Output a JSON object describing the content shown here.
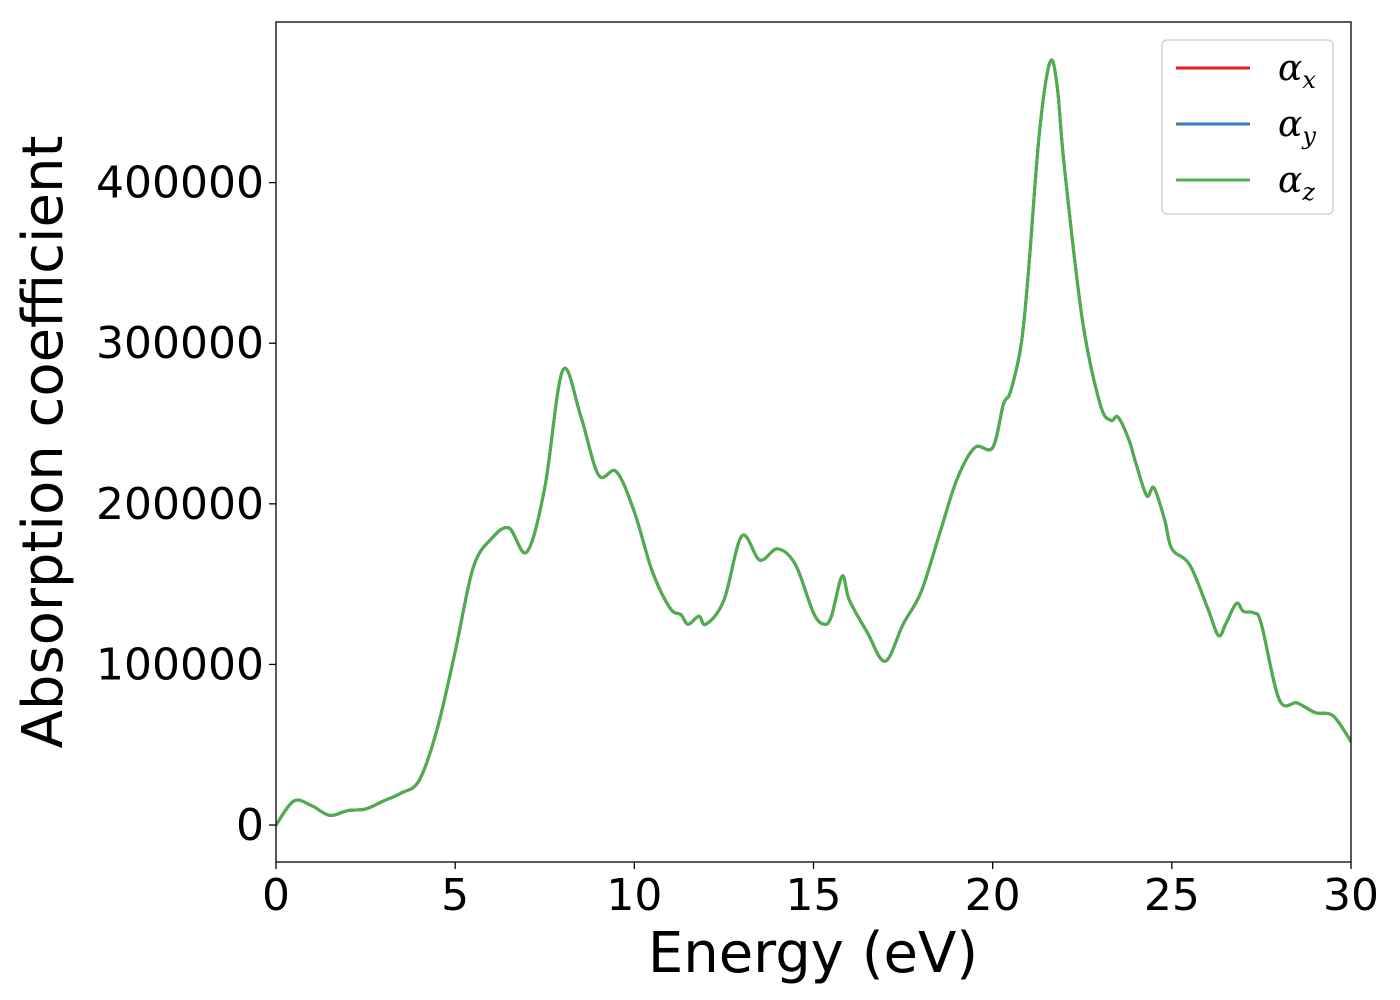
{
  "chart_data": {
    "type": "line",
    "xlabel": "Energy (eV)",
    "ylabel": "Absorption coefficient",
    "xlim": [
      0,
      30
    ],
    "ylim": [
      -23000,
      500000
    ],
    "xticks": [
      0,
      5,
      10,
      15,
      20,
      25,
      30
    ],
    "xtick_labels": [
      "0",
      "5",
      "10",
      "15",
      "20",
      "25",
      "30"
    ],
    "yticks": [
      0,
      100000,
      200000,
      300000,
      400000
    ],
    "ytick_labels": [
      "0",
      "100000",
      "200000",
      "300000",
      "400000"
    ],
    "grid": false,
    "legend_position": "upper-right",
    "x": [
      0,
      0.5,
      1.0,
      1.5,
      2.0,
      2.5,
      3.0,
      3.5,
      4.0,
      4.5,
      5.0,
      5.5,
      6.0,
      6.5,
      7.0,
      7.5,
      8.0,
      8.5,
      9.0,
      9.5,
      10.0,
      10.5,
      11.0,
      11.3,
      11.5,
      11.8,
      12.0,
      12.5,
      13.0,
      13.5,
      14.0,
      14.5,
      15.0,
      15.3,
      15.5,
      15.8,
      16.0,
      16.5,
      17.0,
      17.5,
      18.0,
      18.5,
      19.0,
      19.5,
      20.0,
      20.3,
      20.5,
      20.8,
      21.0,
      21.3,
      21.6,
      21.8,
      22.0,
      22.5,
      23.0,
      23.3,
      23.5,
      23.8,
      24.0,
      24.3,
      24.5,
      24.8,
      25.0,
      25.5,
      26.0,
      26.3,
      26.5,
      26.8,
      27.0,
      27.3,
      27.5,
      28.0,
      28.5,
      29.0,
      29.5,
      30.0
    ],
    "series": [
      {
        "name": "α_x",
        "name_base": "α",
        "name_sub": "x",
        "color": "#e41a1c",
        "y": [
          0,
          15000,
          12000,
          6000,
          9000,
          10000,
          15000,
          20000,
          28000,
          60000,
          108000,
          160000,
          178000,
          185000,
          170000,
          210000,
          283000,
          255000,
          218000,
          220000,
          195000,
          158000,
          135000,
          131000,
          125000,
          130000,
          125000,
          140000,
          180000,
          165000,
          172000,
          162000,
          132000,
          125000,
          130000,
          155000,
          140000,
          120000,
          102000,
          125000,
          145000,
          180000,
          215000,
          235000,
          235000,
          262000,
          270000,
          300000,
          345000,
          430000,
          475000,
          460000,
          410000,
          315000,
          262000,
          252000,
          254000,
          240000,
          225000,
          205000,
          210000,
          190000,
          172000,
          162000,
          135000,
          118000,
          125000,
          138000,
          133000,
          132000,
          125000,
          78000,
          76000,
          70000,
          68000,
          52000
        ]
      },
      {
        "name": "α_y",
        "name_base": "α",
        "name_sub": "y",
        "color": "#377eb8",
        "y": [
          0,
          15000,
          12000,
          6000,
          9000,
          10000,
          15000,
          20000,
          28000,
          60000,
          108000,
          160000,
          178000,
          185000,
          170000,
          210000,
          283000,
          255000,
          218000,
          220000,
          195000,
          158000,
          135000,
          131000,
          125000,
          130000,
          125000,
          140000,
          180000,
          165000,
          172000,
          162000,
          132000,
          125000,
          130000,
          155000,
          140000,
          120000,
          102000,
          125000,
          145000,
          180000,
          215000,
          235000,
          235000,
          262000,
          270000,
          300000,
          345000,
          430000,
          475000,
          460000,
          410000,
          315000,
          262000,
          252000,
          254000,
          240000,
          225000,
          205000,
          210000,
          190000,
          172000,
          162000,
          135000,
          118000,
          125000,
          138000,
          133000,
          132000,
          125000,
          78000,
          76000,
          70000,
          68000,
          52000
        ]
      },
      {
        "name": "α_z",
        "name_base": "α",
        "name_sub": "z",
        "color": "#4daf4a",
        "y": [
          0,
          15000,
          12000,
          6000,
          9000,
          10000,
          15000,
          20000,
          28000,
          60000,
          108000,
          160000,
          178000,
          185000,
          170000,
          210000,
          283000,
          255000,
          218000,
          220000,
          195000,
          158000,
          135000,
          131000,
          125000,
          130000,
          125000,
          140000,
          180000,
          165000,
          172000,
          162000,
          132000,
          125000,
          130000,
          155000,
          140000,
          120000,
          102000,
          125000,
          145000,
          180000,
          215000,
          235000,
          235000,
          262000,
          270000,
          300000,
          345000,
          430000,
          475000,
          460000,
          410000,
          315000,
          262000,
          252000,
          254000,
          240000,
          225000,
          205000,
          210000,
          190000,
          172000,
          162000,
          135000,
          118000,
          125000,
          138000,
          133000,
          132000,
          125000,
          78000,
          76000,
          70000,
          68000,
          52000
        ]
      }
    ]
  }
}
